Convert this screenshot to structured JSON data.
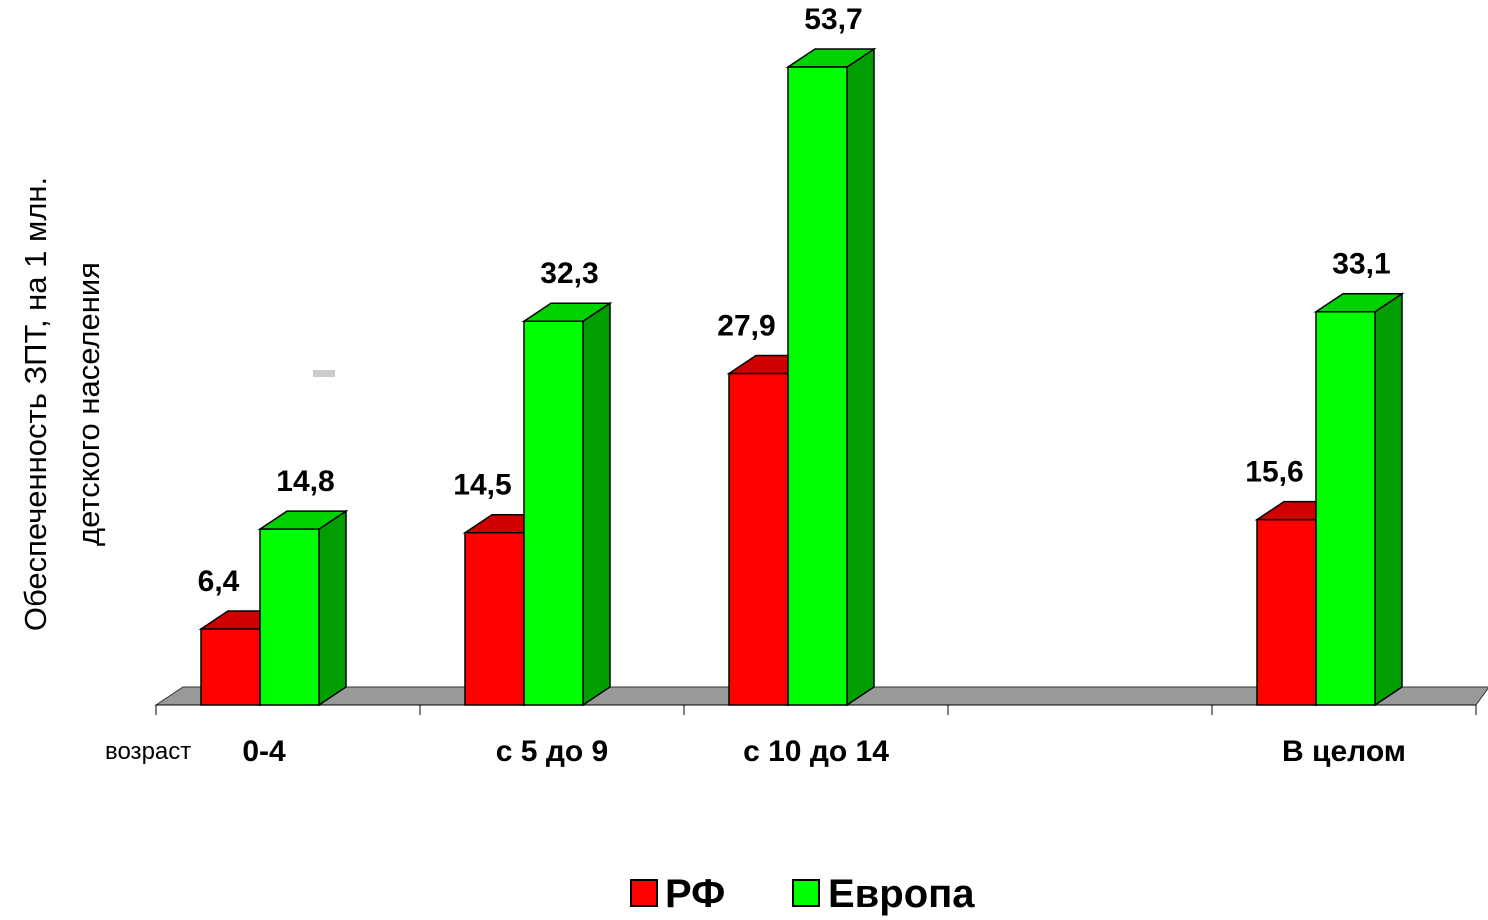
{
  "chart_data": {
    "type": "bar",
    "categories": [
      "0-4",
      "с 5 до 9",
      "с 10 до 14",
      "",
      "В целом"
    ],
    "series": [
      {
        "name": "РФ",
        "values": [
          6.4,
          14.5,
          27.9,
          null,
          15.6
        ],
        "labels": [
          "6,4",
          "14,5",
          "27,9",
          "",
          "15,6"
        ]
      },
      {
        "name": "Европа",
        "values": [
          14.8,
          32.3,
          53.7,
          null,
          33.1
        ],
        "labels": [
          "14,8",
          "32,3",
          "53,7",
          "",
          "33,1"
        ]
      }
    ],
    "xlabel": "возраст",
    "ylabel": [
      "Обеспеченность ЗПТ, на 1 млн.",
      "детского населения"
    ],
    "ylim": [
      0,
      60
    ],
    "grid": false,
    "legend_position": "bottom",
    "colors": {
      "РФ": "#ff0000",
      "Европа": "#00ff00",
      "floor": "#999999"
    }
  }
}
